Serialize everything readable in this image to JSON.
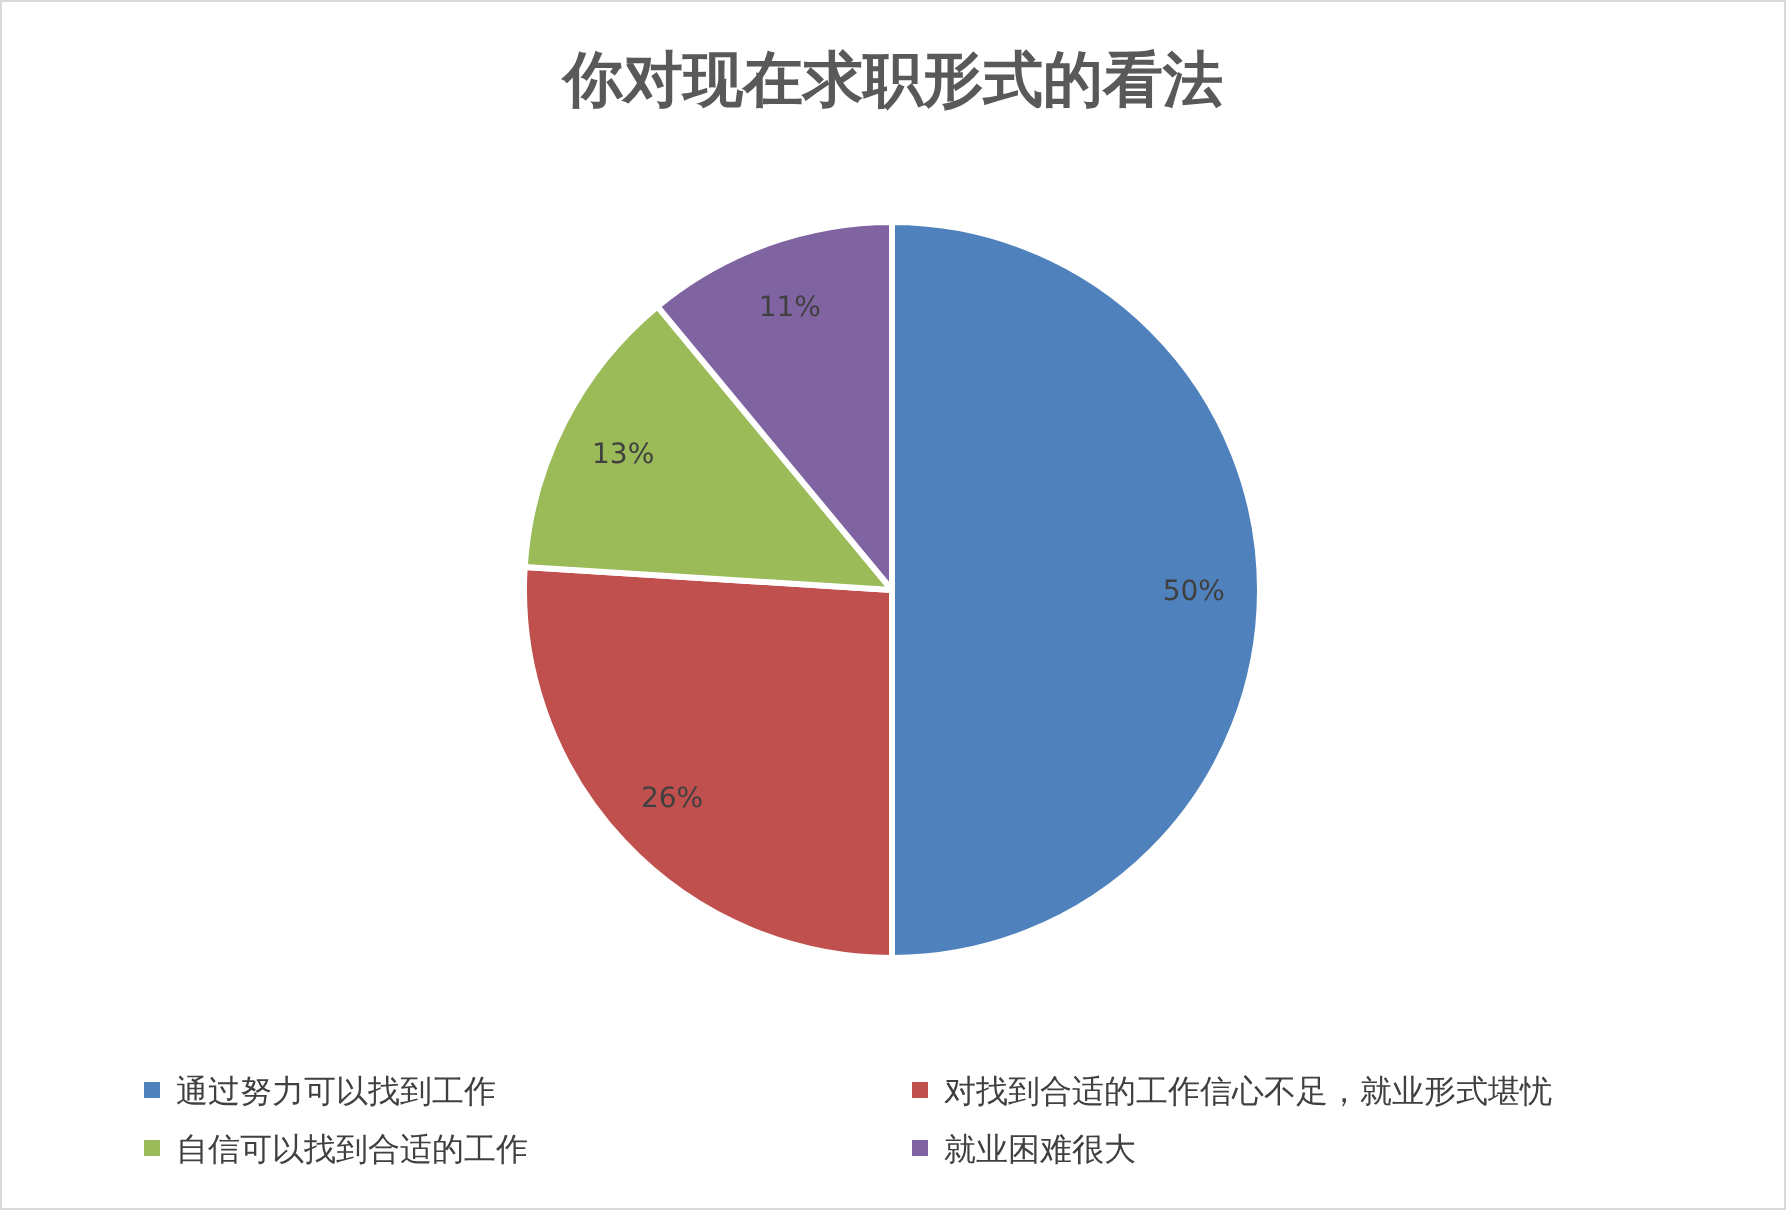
{
  "chart_data": {
    "type": "pie",
    "title": "你对现在求职形式的看法",
    "categories": [
      "通过努力可以找到工作",
      "对找到合适的工作信心不足，就业形式堪忧",
      "自信可以找到合适的工作",
      "就业困难很大"
    ],
    "values": [
      50,
      26,
      13,
      11
    ],
    "colors": [
      "#4f81bd",
      "#c0504d",
      "#9bbb59",
      "#8064a2"
    ],
    "value_labels": [
      "50%",
      "26%",
      "13%",
      "11%"
    ],
    "legend": "bottom"
  }
}
